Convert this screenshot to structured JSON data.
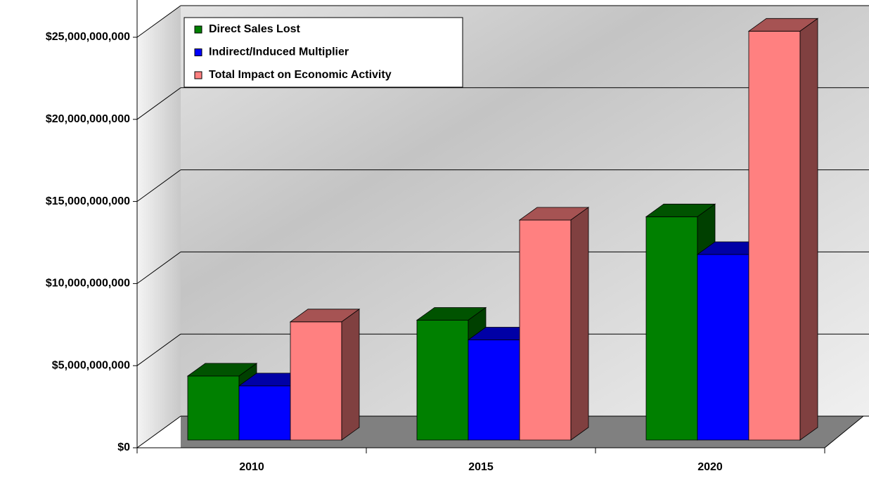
{
  "chart_data": {
    "type": "bar3d",
    "categories": [
      "2010",
      "2015",
      "2020"
    ],
    "series": [
      {
        "name": "Direct Sales Lost",
        "color": "#008000",
        "values": [
          3900000000,
          7300000000,
          13600000000
        ]
      },
      {
        "name": "Indirect/Induced Multiplier",
        "color": "#0000ff",
        "values": [
          3300000000,
          6100000000,
          11300000000
        ]
      },
      {
        "name": "Total Impact on Economic Activity",
        "color": "#ff8080",
        "values": [
          7200000000,
          13400000000,
          24900000000
        ]
      }
    ],
    "ylim": [
      0,
      25000000000
    ],
    "yticks": [
      {
        "value": 0,
        "label": "$0"
      },
      {
        "value": 5000000000,
        "label": "$5,000,000,000"
      },
      {
        "value": 10000000000,
        "label": "$10,000,000,000"
      },
      {
        "value": 15000000000,
        "label": "$15,000,000,000"
      },
      {
        "value": 20000000000,
        "label": "$20,000,000,000"
      },
      {
        "value": 25000000000,
        "label": "$25,000,000,000"
      }
    ],
    "grid": true,
    "legend": "upper left"
  }
}
